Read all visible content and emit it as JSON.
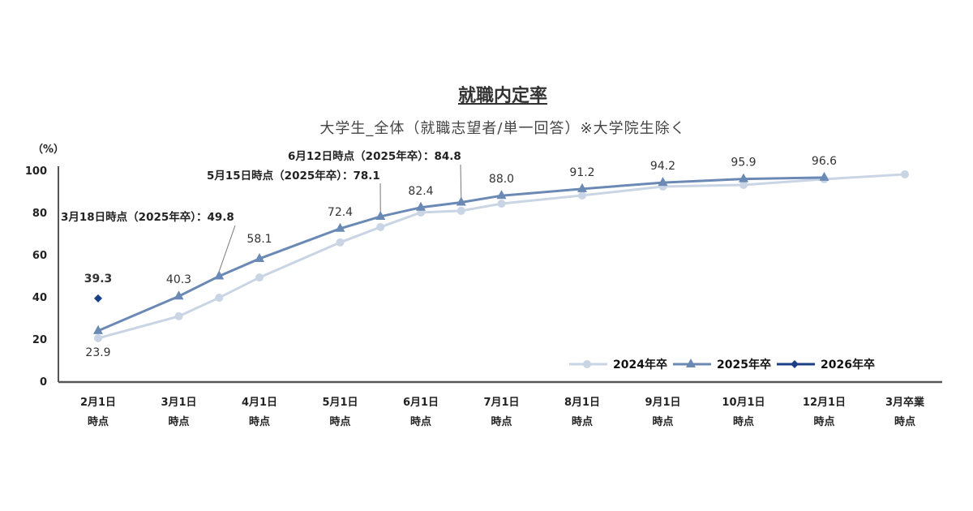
{
  "chart_data": {
    "type": "line",
    "title": "就職内定率",
    "subtitle": "大学生_全体（就職志望者/単一回答）※大学院生除く",
    "ylabel": "（%）",
    "ylim": [
      0,
      100
    ],
    "yticks": [
      "0",
      "20",
      "40",
      "60",
      "80",
      "100"
    ],
    "categories": [
      [
        "2月1日",
        "時点"
      ],
      [
        "3月1日",
        "時点"
      ],
      [
        "4月1日",
        "時点"
      ],
      [
        "5月1日",
        "時点"
      ],
      [
        "6月1日",
        "時点"
      ],
      [
        "7月1日",
        "時点"
      ],
      [
        "8月1日",
        "時点"
      ],
      [
        "9月1日",
        "時点"
      ],
      [
        "10月1日",
        "時点"
      ],
      [
        "12月1日",
        "時点"
      ],
      [
        "3月卒業",
        "時点"
      ]
    ],
    "legend_position": "bottom-right",
    "series": [
      {
        "name": "2024年卒",
        "color": "#c9d5e4",
        "marker": "circle",
        "x": [
          0,
          1,
          1.5,
          2,
          3,
          3.5,
          4,
          4.5,
          5,
          6,
          7,
          8,
          9,
          10
        ],
        "values": [
          20.4,
          30.8,
          39.6,
          49.2,
          65.8,
          73.1,
          80.0,
          80.8,
          84.2,
          88.1,
          92.3,
          93.1,
          95.8,
          98.1
        ]
      },
      {
        "name": "2025年卒",
        "color": "#6a89b5",
        "marker": "triangle",
        "x": [
          0,
          1,
          1.5,
          2,
          3,
          3.5,
          4,
          4.5,
          5,
          6,
          7,
          8,
          9
        ],
        "values": [
          23.9,
          40.3,
          49.8,
          58.1,
          72.4,
          78.1,
          82.4,
          84.8,
          88.0,
          91.2,
          94.2,
          95.9,
          96.6
        ]
      },
      {
        "name": "2026年卒",
        "color": "#1b3f85",
        "marker": "diamond",
        "x": [
          0
        ],
        "values": [
          39.3
        ]
      }
    ],
    "data_labels": [
      {
        "text": "39.3",
        "x": 0,
        "y": 39.3,
        "pos": "above2"
      },
      {
        "text": "23.9",
        "x": 0,
        "y": 23.9,
        "pos": "below"
      },
      {
        "text": "40.3",
        "x": 1,
        "y": 40.3,
        "pos": "above"
      },
      {
        "text": "58.1",
        "x": 2,
        "y": 58.1,
        "pos": "above2"
      },
      {
        "text": "72.4",
        "x": 3,
        "y": 72.4,
        "pos": "above"
      },
      {
        "text": "82.4",
        "x": 4,
        "y": 82.4,
        "pos": "above"
      },
      {
        "text": "88.0",
        "x": 5,
        "y": 88.0,
        "pos": "above"
      },
      {
        "text": "91.2",
        "x": 6,
        "y": 91.2,
        "pos": "above"
      },
      {
        "text": "94.2",
        "x": 7,
        "y": 94.2,
        "pos": "above"
      },
      {
        "text": "95.9",
        "x": 8,
        "y": 95.9,
        "pos": "above"
      },
      {
        "text": "96.6",
        "x": 9,
        "y": 96.6,
        "pos": "above"
      }
    ],
    "annotations": [
      {
        "text": "3月18日時点（2025年卒）：49.8",
        "x": 1.5,
        "y": 49.8
      },
      {
        "text": "5月15日時点（2025年卒）：78.1",
        "x": 3.5,
        "y": 78.1
      },
      {
        "text": "6月12日時点（2025年卒）：84.8",
        "x": 4.5,
        "y": 84.8
      }
    ]
  }
}
